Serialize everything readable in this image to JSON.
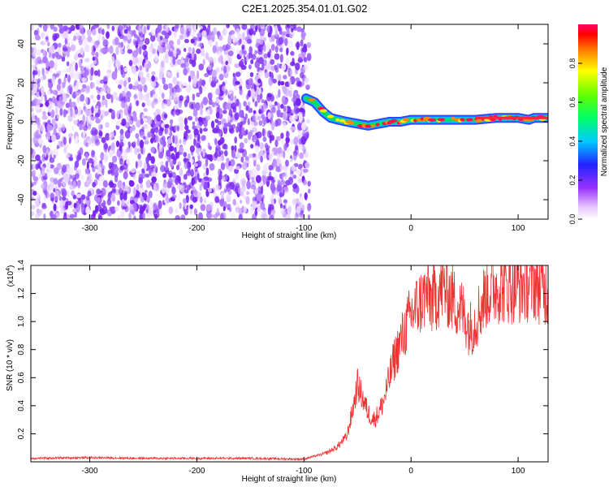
{
  "figure_title": "C2E1.2025.354.01.01.G02",
  "chart_data": [
    {
      "type": "heatmap",
      "xlabel": "Height of straight line (km)",
      "ylabel": "Frequency (Hz)",
      "xlim": [
        -355,
        128
      ],
      "ylim": [
        -50,
        50
      ],
      "xticks": [
        -300,
        -200,
        -100,
        0,
        100
      ],
      "yticks": [
        -40,
        -20,
        0,
        20,
        40
      ],
      "noise_region": {
        "x_start": -355,
        "x_end": -95
      },
      "signal_ridge": {
        "x": [
          -98,
          -90,
          -82,
          -75,
          -68,
          -60,
          -50,
          -40,
          -30,
          -20,
          -10,
          0,
          20,
          40,
          60,
          80,
          100,
          110,
          115,
          128
        ],
        "y": [
          12,
          10,
          5,
          2,
          1,
          0,
          -1,
          -2,
          -1,
          0,
          0,
          1,
          1,
          1,
          1,
          2,
          2,
          1,
          2,
          2
        ]
      },
      "colorbar": {
        "label": "Normalized spectral amplitude",
        "range": [
          0.0,
          1.0
        ],
        "ticks": [
          0.0,
          0.2,
          0.4,
          0.6,
          0.8
        ]
      }
    },
    {
      "type": "line",
      "xlabel": "Height of straight line (km)",
      "ylabel": "SNR (10 * v/v)",
      "y_multiplier": "(x10",
      "y_multiplier_exp": "4",
      "y_multiplier_close": ")",
      "xlim": [
        -355,
        128
      ],
      "ylim": [
        0,
        1.4
      ],
      "xticks": [
        -300,
        -200,
        -100,
        0,
        100
      ],
      "yticks": [
        0.2,
        0.4,
        0.6,
        0.8,
        1.0,
        1.2,
        1.4
      ],
      "series": [
        {
          "color": "#ee3333",
          "x": [
            -355,
            -300,
            -250,
            -200,
            -150,
            -110,
            -100,
            -90,
            -80,
            -70,
            -60,
            -55,
            -50,
            -45,
            -40,
            -35,
            -30,
            -25,
            -20,
            -15,
            -10,
            -5,
            0,
            5,
            10,
            15,
            20,
            25,
            30,
            35,
            40,
            45,
            50,
            55,
            60,
            65,
            70,
            80,
            90,
            100,
            110,
            115,
            120,
            128
          ],
          "y": [
            0.025,
            0.03,
            0.025,
            0.025,
            0.025,
            0.02,
            0.02,
            0.04,
            0.06,
            0.1,
            0.18,
            0.35,
            0.55,
            0.45,
            0.35,
            0.3,
            0.35,
            0.45,
            0.6,
            0.75,
            0.85,
            0.95,
            1.05,
            1.1,
            1.15,
            1.2,
            1.15,
            1.2,
            1.25,
            1.2,
            1.15,
            1.1,
            1.05,
            0.95,
            1.0,
            1.1,
            1.2,
            1.25,
            1.25,
            1.25,
            1.27,
            1.28,
            1.25,
            1.22
          ]
        }
      ]
    }
  ]
}
